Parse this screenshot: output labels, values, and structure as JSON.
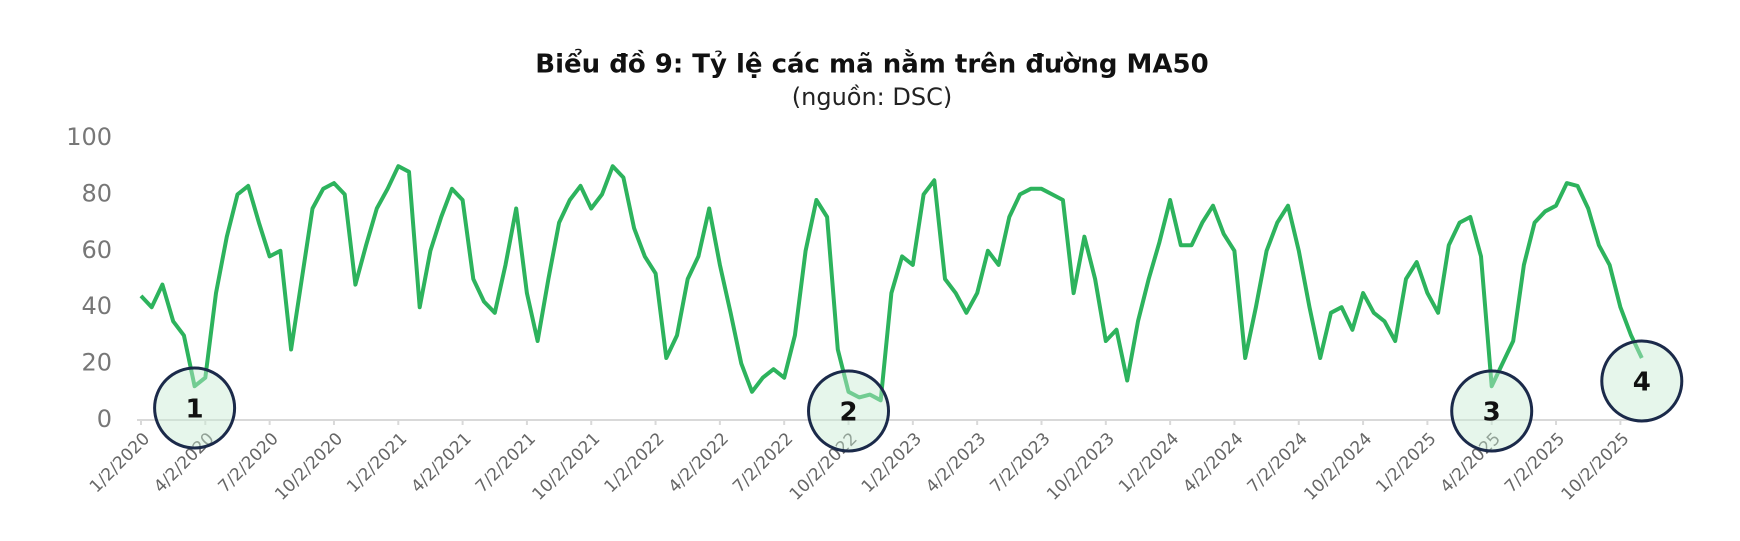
{
  "chart_data": {
    "type": "line",
    "title": "Biểu đồ 9: Tỷ lệ các mã nằm trên đường MA50",
    "subtitle": "(nguồn: DSC)",
    "categories": [
      "1/2/2020",
      null,
      null,
      null,
      null,
      null,
      "4/2/2020",
      null,
      null,
      null,
      null,
      null,
      "7/2/2020",
      null,
      null,
      null,
      null,
      null,
      "10/2/2020",
      null,
      null,
      null,
      null,
      null,
      "1/2/2021",
      null,
      null,
      null,
      null,
      null,
      "4/2/2021",
      null,
      null,
      null,
      null,
      null,
      "7/2/2021",
      null,
      null,
      null,
      null,
      null,
      "10/2/2021",
      null,
      null,
      null,
      null,
      null,
      "1/2/2022",
      null,
      null,
      null,
      null,
      null,
      "4/2/2022",
      null,
      null,
      null,
      null,
      null,
      "7/2/2022",
      null,
      null,
      null,
      null,
      null,
      "10/2/2022",
      null,
      null,
      null,
      null,
      null,
      "1/2/2023",
      null,
      null,
      null,
      null,
      null,
      "4/2/2023",
      null,
      null,
      null,
      null,
      null,
      "7/2/2023",
      null,
      null,
      null,
      null,
      null,
      "10/2/2023",
      null,
      null,
      null,
      null,
      null,
      "1/2/2024",
      null,
      null,
      null,
      null,
      null,
      "4/2/2024",
      null,
      null,
      null,
      null,
      null,
      "7/2/2024",
      null,
      null,
      null,
      null,
      null,
      "10/2/2024",
      null,
      null,
      null,
      null,
      null,
      "1/2/2025",
      null,
      null,
      null,
      null,
      null,
      "4/2/2025",
      null,
      null,
      null,
      null,
      null,
      "7/2/2025",
      null,
      null,
      null,
      null,
      null,
      "10/2/2025",
      null,
      null
    ],
    "values": [
      44,
      40,
      48,
      35,
      30,
      12,
      15,
      45,
      65,
      80,
      83,
      70,
      58,
      60,
      25,
      50,
      75,
      82,
      84,
      80,
      48,
      62,
      75,
      82,
      90,
      88,
      40,
      60,
      72,
      82,
      78,
      50,
      42,
      38,
      55,
      75,
      45,
      28,
      50,
      70,
      78,
      83,
      75,
      80,
      90,
      86,
      68,
      58,
      52,
      22,
      30,
      50,
      58,
      75,
      55,
      38,
      20,
      10,
      15,
      18,
      15,
      30,
      60,
      78,
      72,
      25,
      10,
      8,
      9,
      7,
      45,
      58,
      55,
      80,
      85,
      50,
      45,
      38,
      45,
      60,
      55,
      72,
      80,
      82,
      82,
      80,
      78,
      45,
      65,
      50,
      28,
      32,
      14,
      35,
      50,
      63,
      78,
      62,
      62,
      70,
      76,
      66,
      60,
      22,
      40,
      60,
      70,
      76,
      60,
      40,
      22,
      38,
      40,
      32,
      45,
      38,
      35,
      28,
      50,
      56,
      45,
      38,
      62,
      70,
      72,
      58,
      12,
      20,
      28,
      55,
      70,
      74,
      76,
      84,
      83,
      75,
      62,
      55,
      40,
      30,
      22
    ],
    "color": "#2db35d",
    "ylim": [
      0,
      100
    ],
    "yticks": [
      0,
      20,
      40,
      60,
      80,
      100
    ],
    "annotations": [
      "1",
      "2",
      "3",
      "4"
    ]
  }
}
